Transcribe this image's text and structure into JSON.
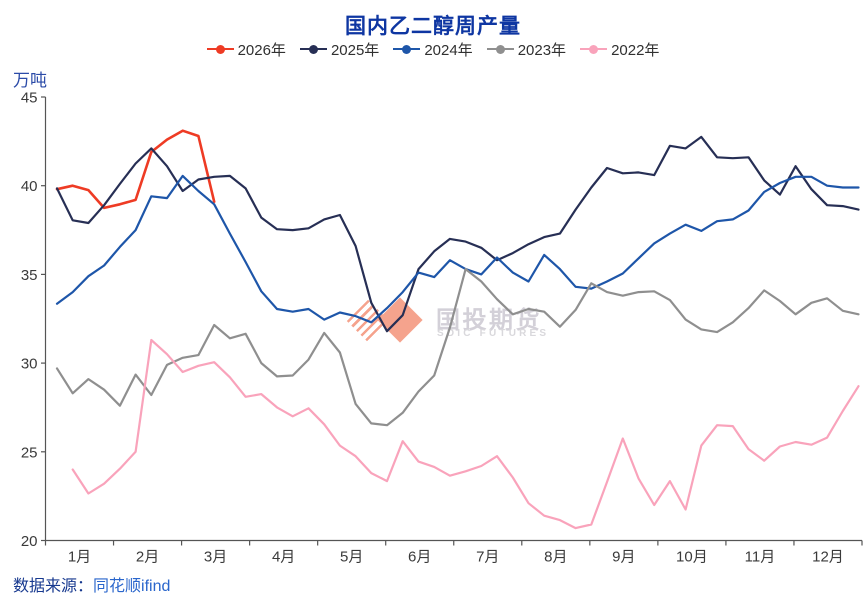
{
  "title": "国内乙二醇周产量",
  "unit_label": "万吨",
  "source": {
    "label": "数据来源：",
    "value": "同花顺ifind"
  },
  "watermark": {
    "cn": "国投期货",
    "en": "SDIC FUTURES"
  },
  "colors": {
    "title": "#0e36a2",
    "unit_label": "#2b4ba8",
    "axis": "#555555",
    "tick_text": "#3a3a3a",
    "source_label": "#17398f",
    "source_value": "#2a66cc",
    "watermark_logo": "#f5a38d",
    "watermark_cn_text": "#d3d0d8",
    "watermark_en_text": "#d9d8dc"
  },
  "chart_data": {
    "type": "line",
    "title": "国内乙二醇周产量",
    "ylabel": "万吨",
    "ylim": [
      20,
      45
    ],
    "yticks": [
      20,
      25,
      30,
      35,
      40,
      45
    ],
    "x_description": "week of year, 52 weeks spanning Jan-Dec",
    "xtick_labels": [
      "1月",
      "2月",
      "3月",
      "4月",
      "5月",
      "6月",
      "7月",
      "8月",
      "9月",
      "10月",
      "11月",
      "12月"
    ],
    "grid": false,
    "legend_position": "top",
    "series": [
      {
        "name": "2026年",
        "color": "#ee3b24",
        "start_week": 1,
        "values": [
          39.8,
          40.0,
          39.75,
          38.75,
          38.95,
          39.2,
          41.9,
          42.6,
          43.1,
          42.8,
          39.1
        ]
      },
      {
        "name": "2025年",
        "color": "#272f55",
        "start_week": 1,
        "values": [
          39.85,
          38.05,
          37.9,
          38.9,
          40.1,
          41.25,
          42.1,
          41.1,
          39.7,
          40.35,
          40.5,
          40.55,
          39.85,
          38.2,
          37.55,
          37.5,
          37.6,
          38.1,
          38.35,
          36.6,
          33.4,
          31.8,
          32.7,
          35.3,
          36.3,
          37.0,
          36.85,
          36.5,
          35.8,
          36.2,
          36.7,
          37.1,
          37.3,
          38.65,
          39.9,
          41.0,
          40.7,
          40.75,
          40.6,
          42.25,
          42.1,
          42.75,
          41.6,
          41.55,
          41.6,
          40.3,
          39.5,
          41.1,
          39.8,
          38.9,
          38.85,
          38.65
        ]
      },
      {
        "name": "2024年",
        "color": "#1e56a9",
        "start_week": 1,
        "values": [
          33.35,
          34.0,
          34.9,
          35.5,
          36.55,
          37.5,
          39.4,
          39.3,
          40.55,
          39.7,
          38.95,
          37.3,
          35.7,
          34.05,
          33.05,
          32.9,
          33.05,
          32.45,
          32.85,
          32.65,
          32.3,
          33.1,
          34.0,
          35.1,
          34.85,
          35.8,
          35.3,
          35.0,
          35.95,
          35.1,
          34.6,
          36.1,
          35.3,
          34.3,
          34.2,
          34.6,
          35.05,
          35.9,
          36.75,
          37.3,
          37.8,
          37.45,
          38.0,
          38.1,
          38.6,
          39.65,
          40.15,
          40.5,
          40.5,
          40.0,
          39.9,
          39.9
        ]
      },
      {
        "name": "2023年",
        "color": "#8f8f8f",
        "start_week": 1,
        "values": [
          29.7,
          28.3,
          29.1,
          28.5,
          27.6,
          29.35,
          28.2,
          29.9,
          30.3,
          30.45,
          32.15,
          31.4,
          31.65,
          30.0,
          29.25,
          29.3,
          30.2,
          31.7,
          30.6,
          27.7,
          26.6,
          26.5,
          27.2,
          28.4,
          29.3,
          32.0,
          35.3,
          34.6,
          33.6,
          32.75,
          33.05,
          32.9,
          32.05,
          33.0,
          34.5,
          34.0,
          33.8,
          34.0,
          34.05,
          33.55,
          32.45,
          31.9,
          31.75,
          32.3,
          33.1,
          34.1,
          33.5,
          32.75,
          33.4,
          33.65,
          32.95,
          32.75
        ]
      },
      {
        "name": "2022年",
        "color": "#f9a3bb",
        "start_week": 2,
        "values": [
          24.0,
          22.65,
          23.2,
          24.05,
          25.0,
          31.3,
          30.5,
          29.5,
          29.85,
          30.05,
          29.2,
          28.1,
          28.25,
          27.5,
          27.0,
          27.45,
          26.55,
          25.35,
          24.75,
          23.8,
          23.35,
          25.6,
          24.45,
          24.15,
          23.65,
          23.9,
          24.2,
          24.75,
          23.55,
          22.1,
          21.4,
          21.15,
          20.7,
          20.9,
          23.3,
          25.75,
          23.5,
          22.0,
          23.35,
          21.75,
          25.35,
          26.5,
          26.45,
          25.15,
          24.5,
          25.3,
          25.55,
          25.4,
          25.8,
          27.3,
          28.7
        ]
      }
    ]
  }
}
